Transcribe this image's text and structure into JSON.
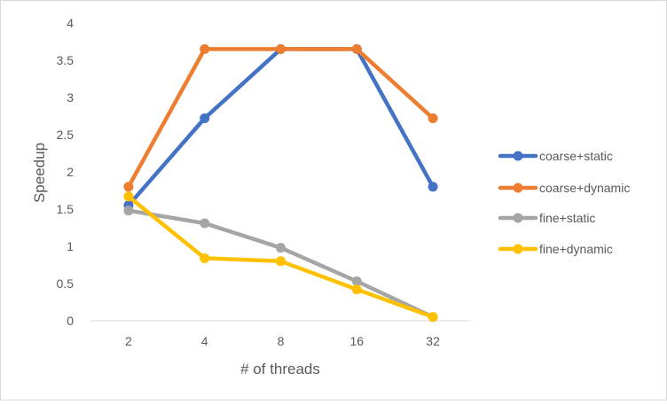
{
  "chart_data": {
    "type": "line",
    "title": "",
    "xlabel": "# of threads",
    "ylabel": "Speedup",
    "categories": [
      "2",
      "4",
      "8",
      "16",
      "32"
    ],
    "ylim": [
      0,
      4
    ],
    "yticks": [
      "0",
      "0.5",
      "1",
      "1.5",
      "2",
      "2.5",
      "3",
      "3.5",
      "4"
    ],
    "grid": false,
    "legend": "right",
    "series": [
      {
        "name": "coarse+static",
        "color": "#4472C4",
        "values": [
          1.55,
          2.72,
          3.65,
          3.65,
          1.8
        ]
      },
      {
        "name": "coarse+dynamic",
        "color": "#ED7D31",
        "values": [
          1.8,
          3.65,
          3.65,
          3.65,
          2.72
        ]
      },
      {
        "name": "fine+static",
        "color": "#A5A5A5",
        "values": [
          1.48,
          1.31,
          0.98,
          0.53,
          0.05
        ]
      },
      {
        "name": "fine+dynamic",
        "color": "#FFC000",
        "values": [
          1.67,
          0.84,
          0.8,
          0.42,
          0.05
        ]
      }
    ]
  }
}
